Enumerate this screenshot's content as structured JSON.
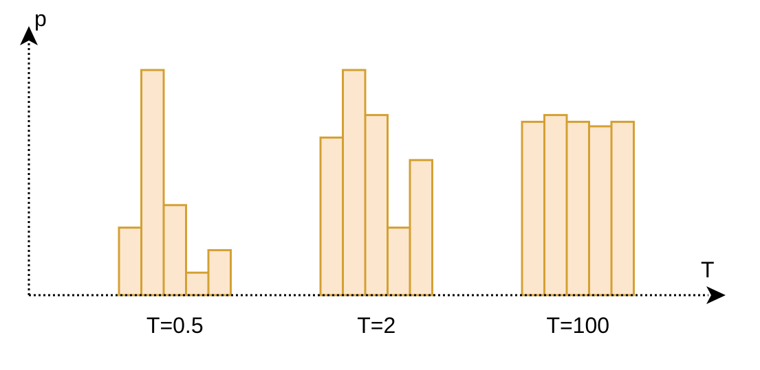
{
  "chart_data": {
    "type": "bar",
    "title": "",
    "xlabel": "T",
    "ylabel": "p",
    "ylim": [
      0,
      10
    ],
    "grid": false,
    "legend": "none",
    "groups": [
      {
        "label": "T=0.5",
        "values": [
          3,
          10,
          4,
          1,
          2
        ]
      },
      {
        "label": "T=2",
        "values": [
          7,
          10,
          8,
          3,
          6
        ]
      },
      {
        "label": "T=100",
        "values": [
          7.7,
          8,
          7.7,
          7.5,
          7.7
        ]
      }
    ],
    "colors": {
      "bar_fill": "#FCE6CE",
      "bar_stroke": "#D4A033",
      "axis": "#000000"
    }
  }
}
